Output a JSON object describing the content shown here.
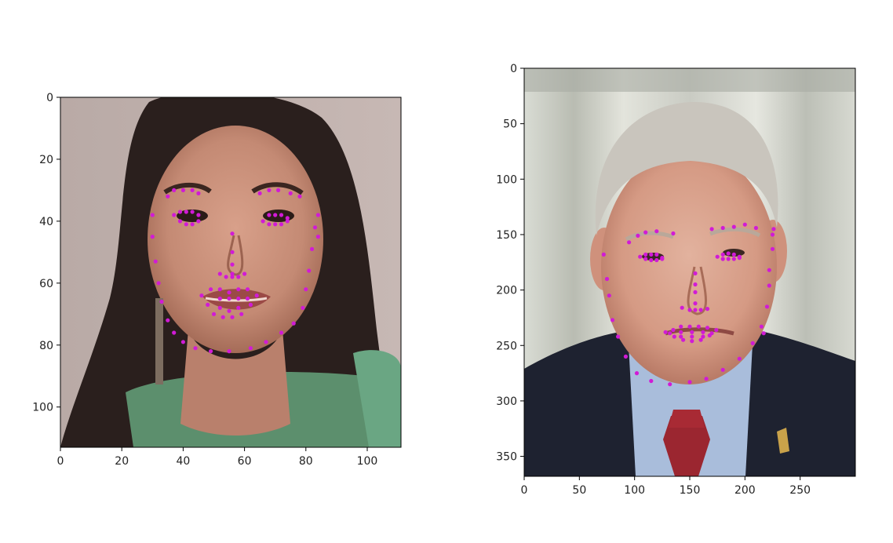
{
  "chart_data": [
    {
      "type": "scatter",
      "title": "",
      "xlabel": "",
      "ylabel": "",
      "xlim": [
        0,
        111
      ],
      "ylim": [
        113,
        0
      ],
      "xticks": [
        0,
        20,
        40,
        60,
        80,
        100
      ],
      "yticks": [
        0,
        20,
        40,
        60,
        80,
        100
      ],
      "grid": false,
      "background_image": "face-photo-woman-dark-hair",
      "marker_color": "#d11bd6",
      "series": [
        {
          "x": [
            30,
            30,
            31,
            32,
            33,
            35,
            37,
            40,
            44,
            49,
            55,
            62,
            67,
            72,
            76,
            79,
            80,
            81,
            82,
            83,
            84,
            84,
            35,
            37,
            40,
            43,
            45,
            65,
            68,
            71,
            75,
            78,
            56,
            56,
            56,
            56,
            52,
            54,
            56,
            58,
            60,
            37,
            39,
            41,
            43,
            45,
            39,
            41,
            43,
            45,
            66,
            68,
            70,
            72,
            74,
            68,
            70,
            72,
            74,
            46,
            49,
            52,
            55,
            58,
            61,
            64,
            62,
            59,
            56,
            53,
            50,
            48,
            52,
            55,
            58,
            61,
            58,
            55,
            52
          ],
          "y": [
            38,
            45,
            53,
            60,
            66,
            72,
            76,
            79,
            81,
            82,
            82,
            81,
            79,
            76,
            73,
            68,
            62,
            56,
            49,
            42,
            38,
            45,
            32,
            30,
            30,
            30,
            31,
            31,
            30,
            30,
            31,
            32,
            44,
            50,
            54,
            57,
            57,
            58,
            58,
            58,
            57,
            38,
            37,
            37,
            37,
            38,
            40,
            41,
            41,
            40,
            40,
            38,
            38,
            38,
            39,
            41,
            41,
            41,
            40,
            64,
            62,
            62,
            63,
            62,
            62,
            64,
            67,
            70,
            71,
            71,
            70,
            67,
            65,
            65,
            65,
            65,
            68,
            69,
            68
          ]
        }
      ]
    },
    {
      "type": "scatter",
      "title": "",
      "xlabel": "",
      "ylabel": "",
      "xlim": [
        0,
        300
      ],
      "ylim": [
        368,
        0
      ],
      "xticks": [
        0,
        50,
        100,
        150,
        200,
        250
      ],
      "yticks": [
        0,
        50,
        100,
        150,
        200,
        250,
        300,
        350
      ],
      "grid": false,
      "background_image": "face-photo-older-man-suit-red-tie",
      "marker_color": "#d11bd6",
      "series": [
        {
          "x": [
            72,
            75,
            77,
            80,
            85,
            92,
            102,
            115,
            132,
            150,
            165,
            180,
            195,
            207,
            215,
            220,
            222,
            222,
            225,
            225,
            226,
            217,
            95,
            103,
            110,
            120,
            135,
            170,
            180,
            190,
            200,
            210,
            155,
            155,
            155,
            155,
            143,
            150,
            155,
            160,
            166,
            105,
            110,
            115,
            120,
            125,
            110,
            115,
            120,
            125,
            175,
            180,
            185,
            190,
            195,
            180,
            185,
            190,
            195,
            128,
            135,
            142,
            150,
            158,
            166,
            174,
            168,
            160,
            152,
            144,
            136,
            132,
            142,
            152,
            162,
            170,
            162,
            152,
            142
          ],
          "y": [
            168,
            190,
            205,
            227,
            242,
            260,
            275,
            282,
            285,
            283,
            280,
            272,
            262,
            248,
            233,
            215,
            196,
            182,
            163,
            150,
            145,
            239,
            157,
            151,
            148,
            147,
            149,
            145,
            144,
            143,
            141,
            144,
            185,
            195,
            202,
            212,
            216,
            218,
            218,
            218,
            217,
            170,
            168,
            168,
            168,
            171,
            172,
            173,
            173,
            172,
            170,
            168,
            167,
            168,
            170,
            172,
            172,
            172,
            171,
            238,
            236,
            233,
            233,
            233,
            234,
            236,
            241,
            245,
            246,
            245,
            242,
            239,
            238,
            238,
            238,
            239,
            242,
            242,
            242
          ]
        }
      ]
    }
  ]
}
